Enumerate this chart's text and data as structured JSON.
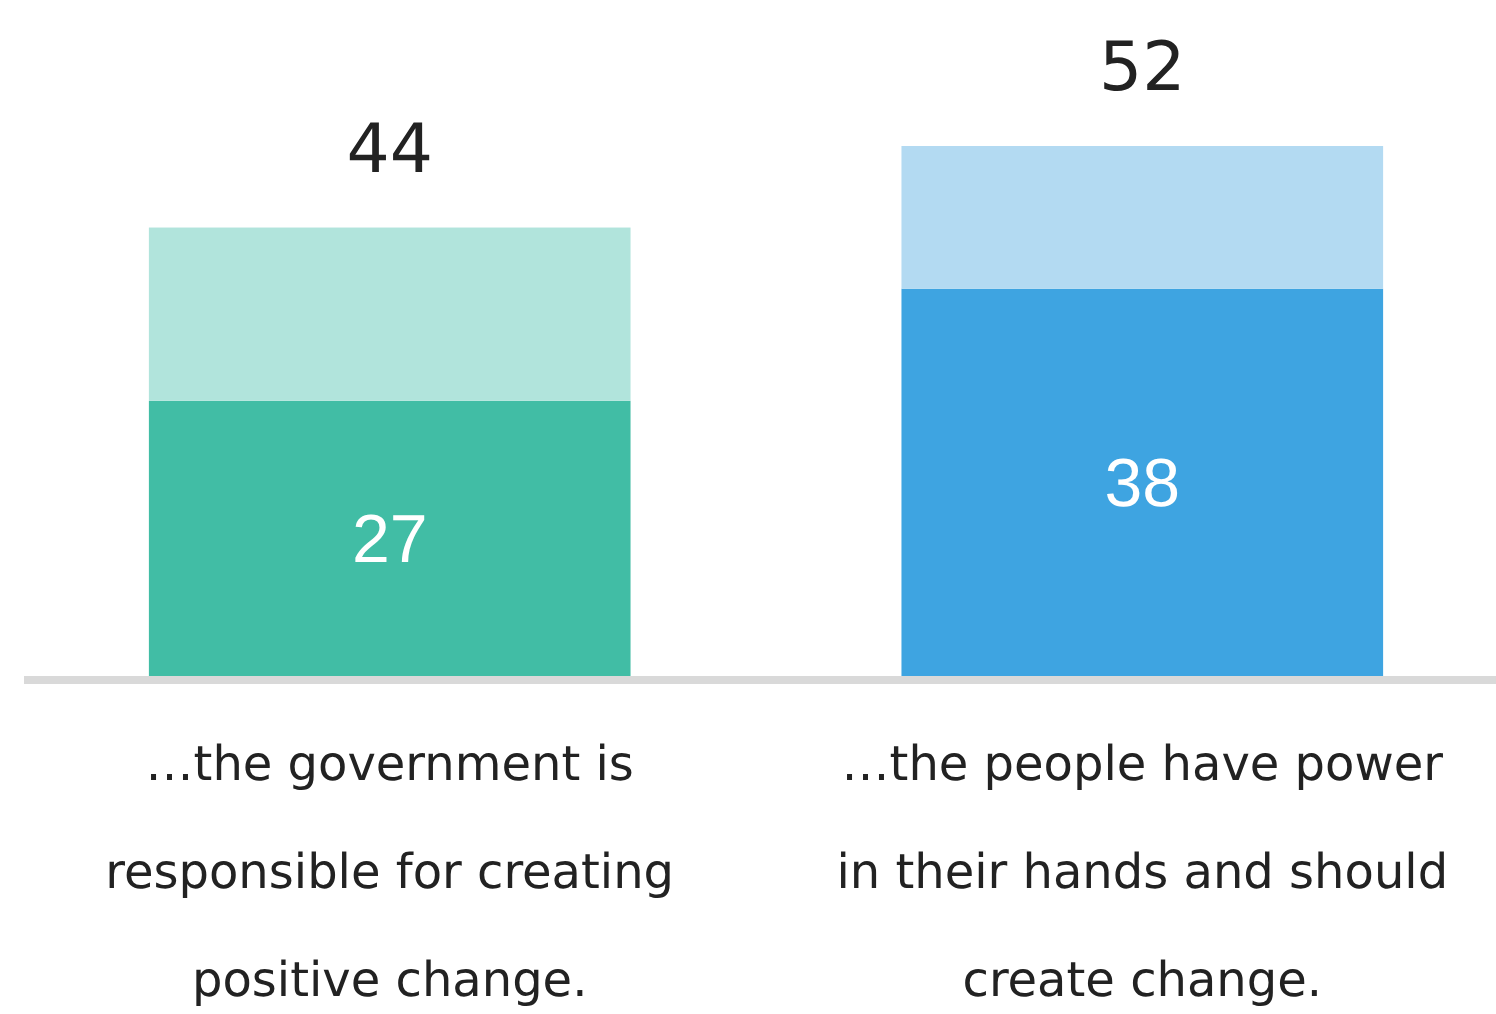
{
  "chart_data": {
    "type": "bar",
    "stacked": true,
    "categories": [
      "…the government is responsible for creating positive change.",
      "…the people have power in their hands and should create change."
    ],
    "series": [
      {
        "colors": [
          "#41bda5",
          "#3ea4e1"
        ],
        "values": [
          27,
          38
        ],
        "value_labels": [
          "27",
          "38"
        ]
      },
      {
        "colors": [
          "#b1e4dc",
          "#b3daf2"
        ],
        "values": [
          17,
          14
        ],
        "value_labels": [
          null,
          null
        ]
      }
    ],
    "totals": [
      "44",
      "52"
    ]
  }
}
